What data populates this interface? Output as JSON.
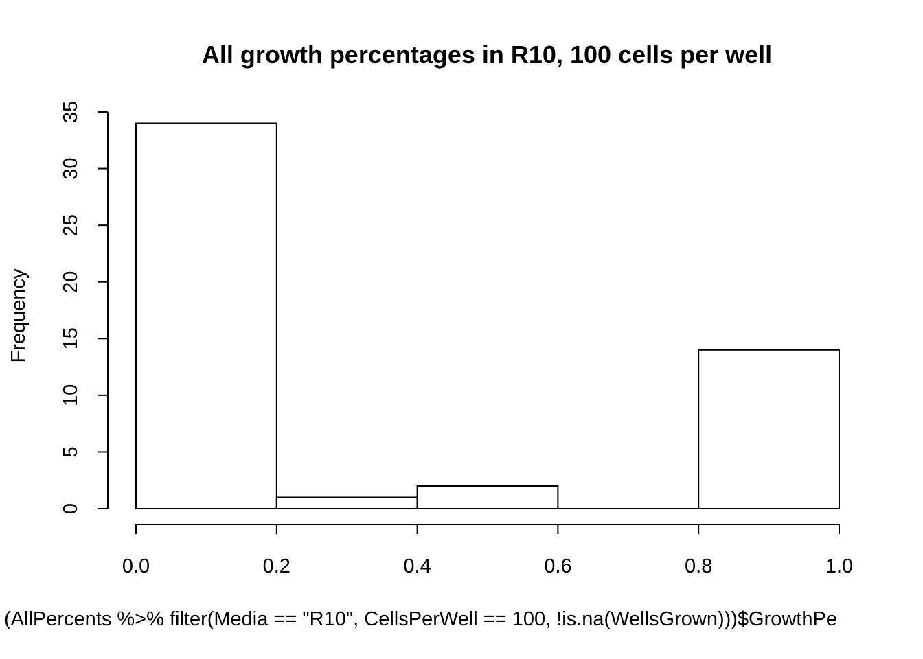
{
  "chart_data": {
    "type": "bar",
    "title": "All growth percentages in R10, 100 cells per well",
    "xlabel": "(AllPercents %>% filter(Media == \"R10\", CellsPerWell == 100, !is.na(WellsGrown)))$GrowthPe",
    "ylabel": "Frequency",
    "bins": [
      {
        "x0": 0.0,
        "x1": 0.2,
        "count": 34
      },
      {
        "x0": 0.2,
        "x1": 0.4,
        "count": 1
      },
      {
        "x0": 0.4,
        "x1": 0.6,
        "count": 2
      },
      {
        "x0": 0.6,
        "x1": 0.8,
        "count": 0
      },
      {
        "x0": 0.8,
        "x1": 1.0,
        "count": 14
      }
    ],
    "xlim": [
      0.0,
      1.0
    ],
    "ylim": [
      0,
      35
    ],
    "xticks": [
      "0.0",
      "0.2",
      "0.4",
      "0.6",
      "0.8",
      "1.0"
    ],
    "yticks": [
      "0",
      "5",
      "10",
      "15",
      "20",
      "25",
      "30",
      "35"
    ],
    "grid": false
  }
}
